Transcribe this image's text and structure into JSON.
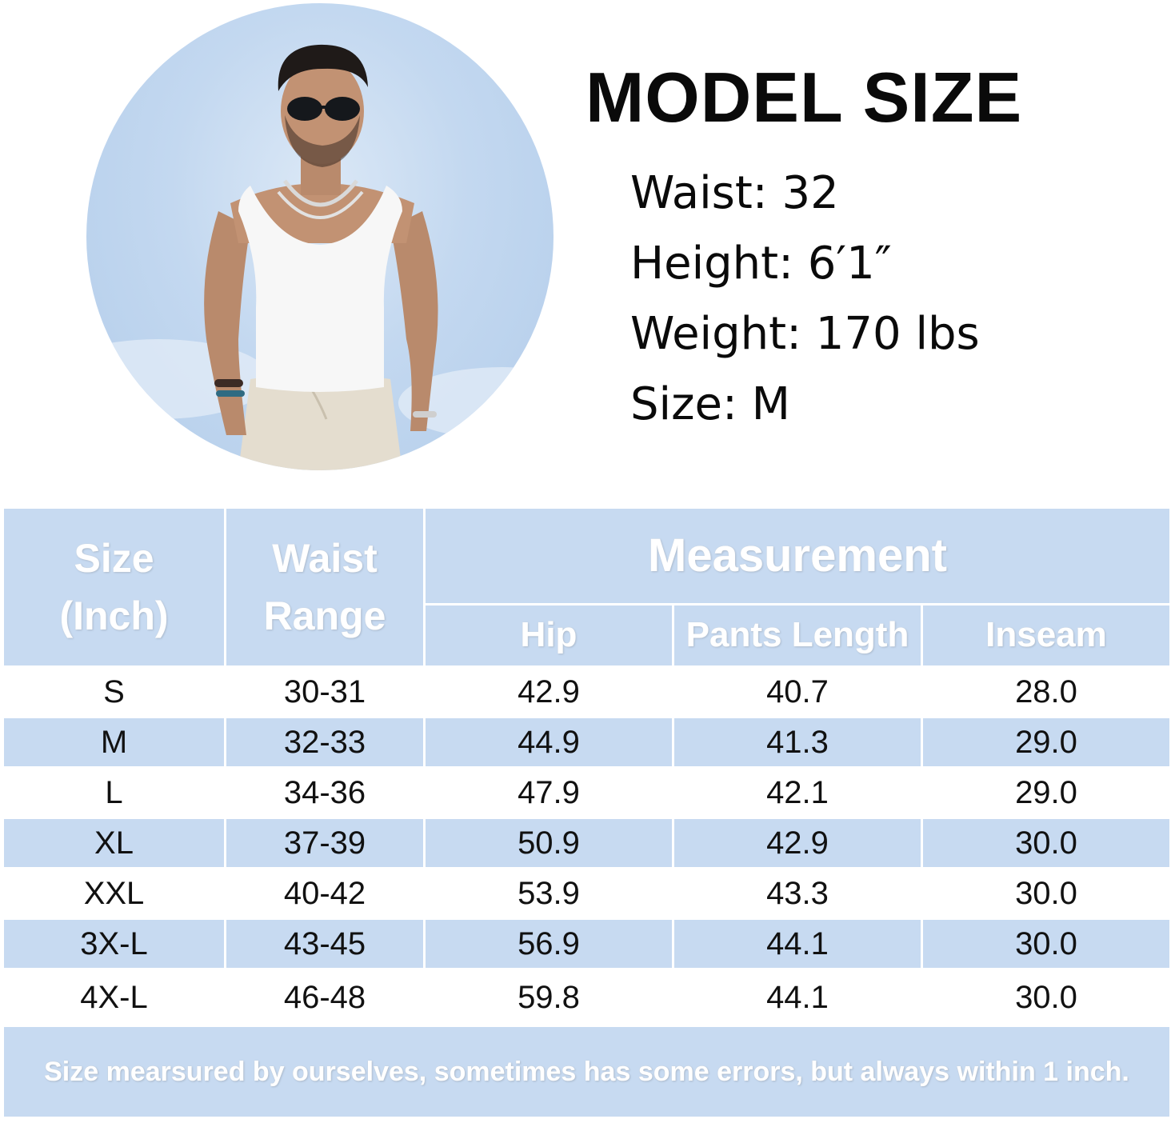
{
  "model": {
    "title": "MODEL SIZE",
    "stats": [
      "Waist: 32",
      "Height: 6′1″",
      "Weight: 170 lbs",
      "Size: M"
    ]
  },
  "table": {
    "header": {
      "size": [
        "Size",
        "(Inch)"
      ],
      "waist": [
        "Waist",
        "Range"
      ],
      "measurement": "Measurement",
      "sub": [
        "Hip",
        "Pants Length",
        "Inseam"
      ]
    },
    "rows": [
      {
        "size": "S",
        "waist": "30-31",
        "hip": "42.9",
        "length": "40.7",
        "inseam": "28.0"
      },
      {
        "size": "M",
        "waist": "32-33",
        "hip": "44.9",
        "length": "41.3",
        "inseam": "29.0"
      },
      {
        "size": "L",
        "waist": "34-36",
        "hip": "47.9",
        "length": "42.1",
        "inseam": "29.0"
      },
      {
        "size": "XL",
        "waist": "37-39",
        "hip": "50.9",
        "length": "42.9",
        "inseam": "30.0"
      },
      {
        "size": "XXL",
        "waist": "40-42",
        "hip": "53.9",
        "length": "43.3",
        "inseam": "30.0"
      },
      {
        "size": "3X-L",
        "waist": "43-45",
        "hip": "56.9",
        "length": "44.1",
        "inseam": "30.0"
      },
      {
        "size": "4X-L",
        "waist": "46-48",
        "hip": "59.8",
        "length": "44.1",
        "inseam": "30.0"
      }
    ],
    "footnote": "Size mearsured by ourselves, sometimes has some errors, but always within 1 inch."
  },
  "colors": {
    "header_bg": "#c7daf1",
    "header_text": "#ffffff",
    "body_text": "#111111",
    "sky": "#c3d8f0"
  }
}
